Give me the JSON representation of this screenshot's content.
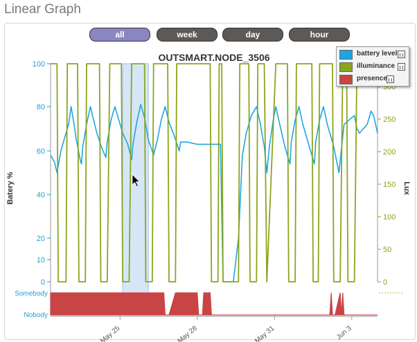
{
  "page": {
    "title": "Linear Graph"
  },
  "range_buttons": [
    {
      "label": "all",
      "active": true
    },
    {
      "label": "week",
      "active": false
    },
    {
      "label": "day",
      "active": false
    },
    {
      "label": "hour",
      "active": false
    }
  ],
  "colors": {
    "battery": "#1ea6e0",
    "illuminance": "#8aa51e",
    "presence": "#c94545",
    "left_axis": "#1e9fd8",
    "right_axis": "#8aa51e",
    "button_active": "#8a86c2",
    "button_inactive": "#5d5956",
    "selection": "#c8ddf3"
  },
  "chart_data": {
    "type": "line",
    "title": "OUTSMART.NODE_3506",
    "ylabel_left": "Batery %",
    "ylabel_right": "Lux",
    "left_ticks": [
      0,
      10,
      20,
      40,
      60,
      80,
      100
    ],
    "right_ticks": [
      0,
      50,
      100,
      150,
      200,
      250,
      300
    ],
    "ylim_left": [
      0,
      100
    ],
    "ylim_right": [
      0,
      350
    ],
    "xlim": [
      22.3,
      35.0
    ],
    "x_ticks": [
      {
        "value": 25,
        "label": "May 25"
      },
      {
        "value": 28,
        "label": "May 28"
      },
      {
        "value": 31,
        "label": "May 31"
      },
      {
        "value": 34,
        "label": "Jun 3"
      }
    ],
    "presence_labels": [
      "Somebody",
      "Nobody"
    ],
    "selection_range": [
      25.1,
      26.1
    ],
    "grid": false,
    "legend_position": "top-right",
    "series": [
      {
        "name": "battery level",
        "axis": "left",
        "points": [
          [
            22.3,
            58
          ],
          [
            22.45,
            55
          ],
          [
            22.55,
            50
          ],
          [
            22.7,
            60
          ],
          [
            22.85,
            66
          ],
          [
            23.0,
            72
          ],
          [
            23.1,
            80
          ],
          [
            23.2,
            73
          ],
          [
            23.3,
            65
          ],
          [
            23.45,
            56
          ],
          [
            23.5,
            54
          ],
          [
            23.55,
            62
          ],
          [
            23.7,
            72
          ],
          [
            23.85,
            80
          ],
          [
            23.95,
            75
          ],
          [
            24.1,
            68
          ],
          [
            24.3,
            61
          ],
          [
            24.45,
            57
          ],
          [
            24.5,
            64
          ],
          [
            24.65,
            74
          ],
          [
            24.8,
            80
          ],
          [
            24.95,
            74
          ],
          [
            25.1,
            68
          ],
          [
            25.3,
            63
          ],
          [
            25.45,
            56
          ],
          [
            25.5,
            63
          ],
          [
            25.65,
            73
          ],
          [
            25.8,
            81
          ],
          [
            25.95,
            75
          ],
          [
            26.1,
            65
          ],
          [
            26.3,
            58
          ],
          [
            26.45,
            65
          ],
          [
            26.6,
            74
          ],
          [
            26.75,
            80
          ],
          [
            26.9,
            73
          ],
          [
            27.1,
            67
          ],
          [
            27.3,
            60
          ],
          [
            27.35,
            64
          ],
          [
            27.6,
            64
          ],
          [
            28.0,
            63
          ],
          [
            28.5,
            63
          ],
          [
            28.9,
            63
          ],
          [
            29.0,
            0
          ],
          [
            29.4,
            0
          ],
          [
            29.6,
            20
          ],
          [
            29.75,
            58
          ],
          [
            29.9,
            68
          ],
          [
            30.1,
            76
          ],
          [
            30.3,
            80
          ],
          [
            30.45,
            72
          ],
          [
            30.6,
            62
          ],
          [
            30.7,
            50
          ],
          [
            30.8,
            62
          ],
          [
            30.95,
            74
          ],
          [
            31.05,
            80
          ],
          [
            31.2,
            72
          ],
          [
            31.4,
            62
          ],
          [
            31.6,
            54
          ],
          [
            31.65,
            64
          ],
          [
            31.8,
            74
          ],
          [
            31.95,
            80
          ],
          [
            32.1,
            72
          ],
          [
            32.35,
            62
          ],
          [
            32.55,
            54
          ],
          [
            32.6,
            64
          ],
          [
            32.75,
            74
          ],
          [
            32.9,
            80
          ],
          [
            33.05,
            72
          ],
          [
            33.3,
            62
          ],
          [
            33.5,
            50
          ],
          [
            33.7,
            72
          ],
          [
            33.9,
            74
          ],
          [
            34.1,
            76
          ],
          [
            34.2,
            70
          ],
          [
            34.3,
            68
          ],
          [
            34.6,
            72
          ],
          [
            34.75,
            78
          ],
          [
            34.85,
            76
          ],
          [
            35.0,
            68
          ]
        ]
      },
      {
        "name": "illuminance",
        "axis": "right",
        "points": [
          [
            22.3,
            335
          ],
          [
            22.55,
            335
          ],
          [
            22.6,
            0
          ],
          [
            22.9,
            0
          ],
          [
            22.95,
            335
          ],
          [
            23.35,
            335
          ],
          [
            23.4,
            0
          ],
          [
            23.65,
            0
          ],
          [
            23.7,
            335
          ],
          [
            24.2,
            335
          ],
          [
            24.25,
            0
          ],
          [
            24.5,
            0
          ],
          [
            24.6,
            335
          ],
          [
            25.05,
            335
          ],
          [
            25.1,
            0
          ],
          [
            25.35,
            0
          ],
          [
            25.45,
            335
          ],
          [
            25.95,
            335
          ],
          [
            26.0,
            0
          ],
          [
            26.25,
            0
          ],
          [
            26.3,
            335
          ],
          [
            26.85,
            335
          ],
          [
            26.9,
            0
          ],
          [
            27.15,
            0
          ],
          [
            27.2,
            335
          ],
          [
            28.5,
            335
          ],
          [
            28.55,
            0
          ],
          [
            28.8,
            0
          ],
          [
            28.85,
            335
          ],
          [
            28.95,
            335
          ],
          [
            29.0,
            0
          ],
          [
            29.6,
            0
          ],
          [
            29.65,
            335
          ],
          [
            30.0,
            335
          ],
          [
            30.05,
            0
          ],
          [
            30.3,
            0
          ],
          [
            30.35,
            335
          ],
          [
            30.6,
            335
          ],
          [
            30.7,
            0
          ],
          [
            31.05,
            335
          ],
          [
            31.5,
            335
          ],
          [
            31.55,
            0
          ],
          [
            31.8,
            0
          ],
          [
            31.85,
            335
          ],
          [
            32.45,
            335
          ],
          [
            32.5,
            0
          ],
          [
            32.7,
            0
          ],
          [
            32.75,
            335
          ],
          [
            33.25,
            335
          ],
          [
            33.3,
            0
          ],
          [
            33.55,
            0
          ],
          [
            33.65,
            335
          ],
          [
            33.8,
            335
          ],
          [
            33.85,
            0
          ],
          [
            34.1,
            0
          ],
          [
            34.2,
            335
          ],
          [
            35.0,
            335
          ]
        ]
      },
      {
        "name": "presence",
        "axis": "presence",
        "points": [
          [
            22.3,
            1
          ],
          [
            24.45,
            1
          ],
          [
            25.1,
            1
          ],
          [
            26.7,
            1
          ],
          [
            26.75,
            0
          ],
          [
            26.9,
            0
          ],
          [
            27.15,
            1
          ],
          [
            28.0,
            1
          ],
          [
            28.05,
            0
          ],
          [
            28.2,
            0
          ],
          [
            28.25,
            1
          ],
          [
            28.5,
            1
          ],
          [
            28.55,
            0
          ],
          [
            33.15,
            0
          ],
          [
            33.2,
            1
          ],
          [
            33.25,
            0
          ],
          [
            33.35,
            0
          ],
          [
            33.55,
            1
          ],
          [
            33.6,
            0
          ],
          [
            33.65,
            1
          ],
          [
            33.7,
            0
          ],
          [
            35.0,
            0
          ]
        ]
      }
    ]
  },
  "legend": [
    {
      "label": "battery level"
    },
    {
      "label": "illuminance"
    },
    {
      "label": "presence"
    }
  ]
}
